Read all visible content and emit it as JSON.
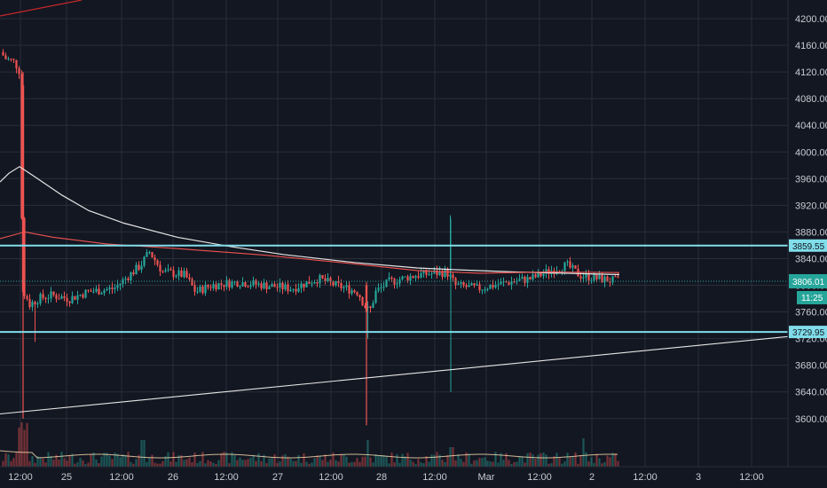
{
  "chart_data": {
    "type": "candlestick",
    "ylim": [
      3560,
      4220
    ],
    "y_ticks": [
      "4200.00",
      "4160.00",
      "4120.00",
      "4080.00",
      "4040.00",
      "4000.00",
      "3960.00",
      "3920.00",
      "3880.00",
      "3840.00",
      "3800.00",
      "3760.00",
      "3720.00",
      "3680.00",
      "3640.00",
      "3600.00"
    ],
    "x_ticks": [
      "12:00",
      "25",
      "12:00",
      "26",
      "12:00",
      "27",
      "12:00",
      "28",
      "12:00",
      "Mar",
      "12:00",
      "2",
      "12:00",
      "3",
      "12:00"
    ],
    "grid": true,
    "horizontal_levels": [
      {
        "value": 3859.55,
        "label": "3859.55"
      },
      {
        "value": 3729.95,
        "label": "3729.95"
      }
    ],
    "last_price": {
      "value": 3806.01,
      "label": "3806.01",
      "countdown": "11:25"
    },
    "colors": {
      "up": "#26a69a",
      "down": "#ef5350",
      "level": "#80deea",
      "grid": "#2a2e39",
      "background": "#131722"
    }
  }
}
